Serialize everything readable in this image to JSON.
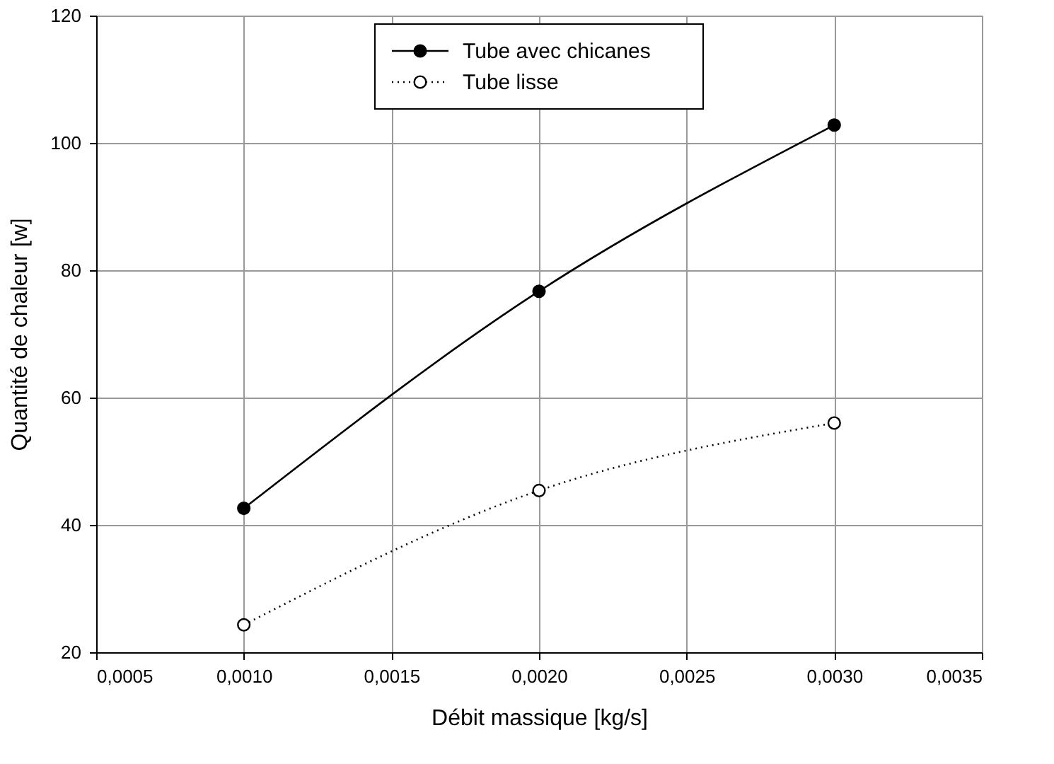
{
  "chart_data": {
    "type": "line",
    "xlabel": "Débit massique [kg/s]",
    "ylabel": "Quantité de chaleur [w]",
    "x": [
      0.001,
      0.002,
      0.003
    ],
    "series": [
      {
        "name": "Tube avec chicanes",
        "color": "#000000",
        "values": [
          42.6,
          76.7,
          102.8
        ],
        "line_style": "solid",
        "marker": "circle"
      },
      {
        "name": "Tube lisse",
        "color": "#000000",
        "values": [
          24.3,
          45.4,
          56.0
        ],
        "line_style": "dotted",
        "marker": "circle"
      }
    ],
    "xlim": [
      0.0005,
      0.0035
    ],
    "xticks": [
      {
        "value": 0.0005,
        "label": "0,0005"
      },
      {
        "value": 0.001,
        "label": "0,0010"
      },
      {
        "value": 0.0015,
        "label": "0,0015"
      },
      {
        "value": 0.002,
        "label": "0,0020"
      },
      {
        "value": 0.0025,
        "label": "0,0025"
      },
      {
        "value": 0.003,
        "label": "0,0030"
      },
      {
        "value": 0.0035,
        "label": "0,0035"
      }
    ],
    "ylim": [
      20,
      120
    ],
    "yticks": [
      20,
      40,
      60,
      80,
      100,
      120
    ],
    "grid": true,
    "legend": "top"
  }
}
